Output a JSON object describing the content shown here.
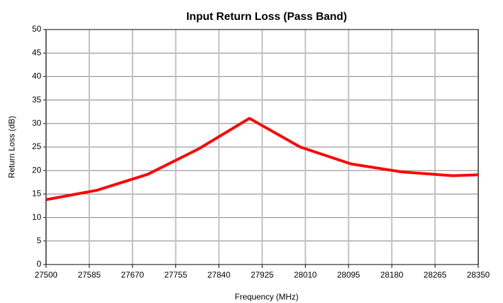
{
  "chart_data": {
    "type": "line",
    "title": "Input Return Loss (Pass Band)",
    "xlabel": "Frequency (MHz)",
    "ylabel": "Return Loss (dB)",
    "x": [
      27500,
      27600,
      27700,
      27800,
      27900,
      28000,
      28100,
      28200,
      28300,
      28350
    ],
    "series": [
      {
        "name": "Return Loss",
        "color": "#ff0000",
        "values": [
          13.8,
          15.8,
          19.2,
          24.6,
          31.1,
          25.0,
          21.4,
          19.7,
          18.9,
          19.1
        ]
      }
    ],
    "xlim": [
      27500,
      28350
    ],
    "xticks": [
      27500,
      27585,
      27670,
      27755,
      27840,
      27925,
      28010,
      28095,
      28180,
      28265,
      28350
    ],
    "ylim": [
      0,
      50
    ],
    "yticks": [
      0,
      5,
      10,
      15,
      20,
      25,
      30,
      35,
      40,
      45,
      50
    ],
    "grid": true
  }
}
